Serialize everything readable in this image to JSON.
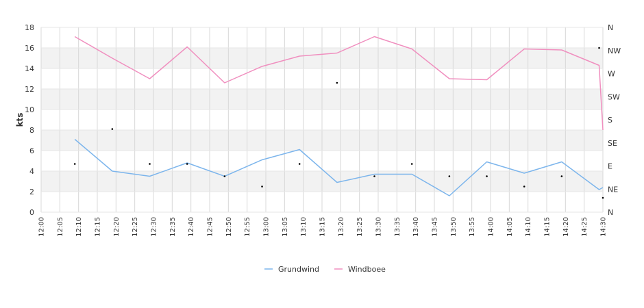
{
  "chart_data": {
    "type": "line",
    "ylabel": "kts",
    "ylim": [
      0,
      18
    ],
    "yticks": [
      "0",
      "2",
      "4",
      "6",
      "8",
      "10",
      "12",
      "14",
      "16",
      "18"
    ],
    "y2ticks": [
      "N",
      "NE",
      "E",
      "SE",
      "S",
      "SW",
      "W",
      "NW",
      "N"
    ],
    "xticks": [
      "12:00",
      "12:05",
      "12:10",
      "12:15",
      "12:20",
      "12:25",
      "12:30",
      "12:35",
      "12:40",
      "12:45",
      "12:50",
      "12:55",
      "13:00",
      "13:05",
      "13:10",
      "13:15",
      "13:20",
      "13:25",
      "13:30",
      "13:35",
      "13:40",
      "13:45",
      "13:50",
      "13:55",
      "14:00",
      "14:05",
      "14:10",
      "14:15",
      "14:20",
      "14:25",
      "14:30"
    ],
    "grid": true,
    "legend_position": "bottom",
    "series": [
      {
        "name": "Grundwind",
        "color": "#7cb5ec",
        "points": [
          [
            "12:09",
            7.1
          ],
          [
            "12:19",
            4.0
          ],
          [
            "12:29",
            3.5
          ],
          [
            "12:39",
            4.8
          ],
          [
            "12:49",
            3.5
          ],
          [
            "12:59",
            5.1
          ],
          [
            "13:09",
            6.1
          ],
          [
            "13:19",
            2.9
          ],
          [
            "13:29",
            3.7
          ],
          [
            "13:39",
            3.7
          ],
          [
            "13:49",
            1.6
          ],
          [
            "13:59",
            4.9
          ],
          [
            "14:09",
            3.8
          ],
          [
            "14:19",
            4.9
          ],
          [
            "14:29",
            2.2
          ],
          [
            "14:30",
            2.4
          ]
        ]
      },
      {
        "name": "Windboee",
        "color": "#f08fbf",
        "points": [
          [
            "12:09",
            17.1
          ],
          [
            "12:19",
            15.0
          ],
          [
            "12:29",
            13.0
          ],
          [
            "12:39",
            16.1
          ],
          [
            "12:49",
            12.6
          ],
          [
            "12:59",
            14.2
          ],
          [
            "13:09",
            15.2
          ],
          [
            "13:19",
            15.5
          ],
          [
            "13:29",
            17.1
          ],
          [
            "13:39",
            15.9
          ],
          [
            "13:49",
            13.0
          ],
          [
            "13:59",
            12.9
          ],
          [
            "14:09",
            15.9
          ],
          [
            "14:19",
            15.8
          ],
          [
            "14:29",
            14.3
          ],
          [
            "14:30",
            8.0
          ]
        ]
      }
    ],
    "direction_markers": [
      [
        "12:09",
        4.7
      ],
      [
        "12:19",
        8.1
      ],
      [
        "12:29",
        4.7
      ],
      [
        "12:39",
        4.7
      ],
      [
        "12:49",
        3.5
      ],
      [
        "12:59",
        2.5
      ],
      [
        "13:09",
        4.7
      ],
      [
        "13:19",
        12.6
      ],
      [
        "13:29",
        3.5
      ],
      [
        "13:39",
        4.7
      ],
      [
        "13:49",
        3.5
      ],
      [
        "13:59",
        3.5
      ],
      [
        "14:09",
        2.5
      ],
      [
        "14:19",
        3.5
      ],
      [
        "14:29",
        16.0
      ],
      [
        "14:30",
        1.4
      ]
    ]
  }
}
